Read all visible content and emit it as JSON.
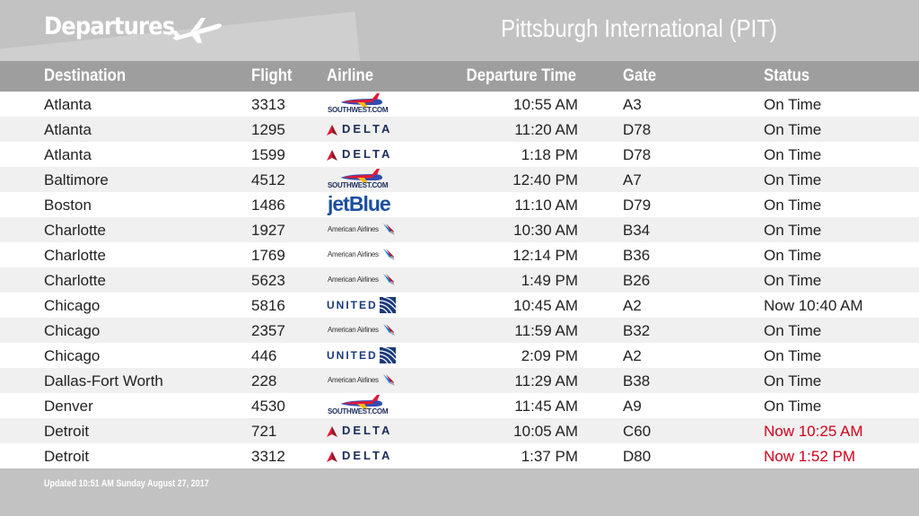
{
  "header": {
    "title": "Departures",
    "airport": "Pittsburgh International (PIT)"
  },
  "columns": {
    "destination": "Destination",
    "flight": "Flight",
    "airline": "Airline",
    "departure_time": "Departure Time",
    "gate": "Gate",
    "status": "Status"
  },
  "flights": [
    {
      "destination": "Atlanta",
      "flight": "3313",
      "airline": "southwest",
      "time": "10:55 AM",
      "gate": "A3",
      "status": "On Time",
      "delayed": false
    },
    {
      "destination": "Atlanta",
      "flight": "1295",
      "airline": "delta",
      "time": "11:20 AM",
      "gate": "D78",
      "status": "On Time",
      "delayed": false
    },
    {
      "destination": "Atlanta",
      "flight": "1599",
      "airline": "delta",
      "time": "1:18 PM",
      "gate": "D78",
      "status": "On Time",
      "delayed": false
    },
    {
      "destination": "Baltimore",
      "flight": "4512",
      "airline": "southwest",
      "time": "12:40 PM",
      "gate": "A7",
      "status": "On Time",
      "delayed": false
    },
    {
      "destination": "Boston",
      "flight": "1486",
      "airline": "jetblue",
      "time": "11:10 AM",
      "gate": "D79",
      "status": "On Time",
      "delayed": false
    },
    {
      "destination": "Charlotte",
      "flight": "1927",
      "airline": "american",
      "time": "10:30 AM",
      "gate": "B34",
      "status": "On Time",
      "delayed": false
    },
    {
      "destination": "Charlotte",
      "flight": "1769",
      "airline": "american",
      "time": "12:14 PM",
      "gate": "B36",
      "status": "On Time",
      "delayed": false
    },
    {
      "destination": "Charlotte",
      "flight": "5623",
      "airline": "american",
      "time": "1:49 PM",
      "gate": "B26",
      "status": "On Time",
      "delayed": false
    },
    {
      "destination": "Chicago",
      "flight": "5816",
      "airline": "united",
      "time": "10:45 AM",
      "gate": "A2",
      "status": "Now 10:40 AM",
      "delayed": false
    },
    {
      "destination": "Chicago",
      "flight": "2357",
      "airline": "american",
      "time": "11:59 AM",
      "gate": "B32",
      "status": "On Time",
      "delayed": false
    },
    {
      "destination": "Chicago",
      "flight": "446",
      "airline": "united",
      "time": "2:09 PM",
      "gate": "A2",
      "status": "On Time",
      "delayed": false
    },
    {
      "destination": "Dallas-Fort Worth",
      "flight": "228",
      "airline": "american",
      "time": "11:29 AM",
      "gate": "B38",
      "status": "On Time",
      "delayed": false
    },
    {
      "destination": "Denver",
      "flight": "4530",
      "airline": "southwest",
      "time": "11:45 AM",
      "gate": "A9",
      "status": "On Time",
      "delayed": false
    },
    {
      "destination": "Detroit",
      "flight": "721",
      "airline": "delta",
      "time": "10:05 AM",
      "gate": "C60",
      "status": "Now 10:25 AM",
      "delayed": true
    },
    {
      "destination": "Detroit",
      "flight": "3312",
      "airline": "delta",
      "time": "1:37 PM",
      "gate": "D80",
      "status": "Now 1:52 PM",
      "delayed": true
    }
  ],
  "airline_logos": {
    "southwest": {
      "text": "SOUTHWEST.COM",
      "icon": "southwest-plane-icon"
    },
    "delta": {
      "text": "DELTA",
      "icon": "delta-widget-icon"
    },
    "jetblue": {
      "text": "jetBlue",
      "icon": "jetblue-wordmark"
    },
    "american": {
      "text": "American Airlines",
      "icon": "american-flight-symbol-icon"
    },
    "united": {
      "text": "UNITED",
      "icon": "united-globe-icon"
    }
  },
  "footer": {
    "updated": "Updated 10:51 AM    Sunday August 27, 2017"
  },
  "colors": {
    "header_bg": "#c2c2c2",
    "column_bar_bg": "#9e9e9e",
    "row_alt_bg": "#f0f0f0",
    "delayed_text": "#d0021b"
  }
}
